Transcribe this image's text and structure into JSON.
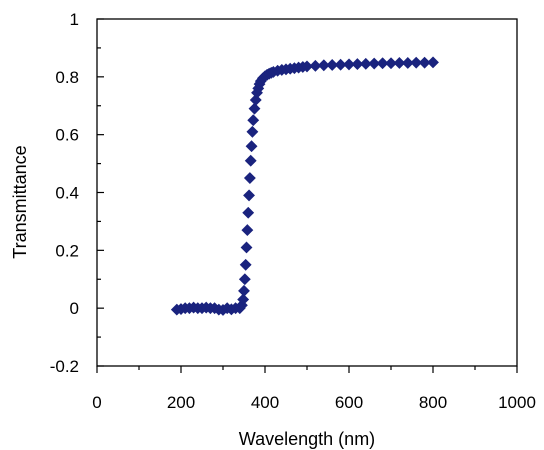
{
  "chart_data": {
    "type": "scatter",
    "title": "",
    "xlabel": "Wavelength (nm)",
    "ylabel": "Transmittance",
    "xlim": [
      0,
      1000
    ],
    "ylim": [
      -0.2,
      1
    ],
    "x_ticks": [
      0,
      200,
      400,
      600,
      800,
      1000
    ],
    "y_ticks": [
      -0.2,
      0,
      0.2,
      0.4,
      0.6,
      0.8,
      1
    ],
    "x_tick_labels": [
      "0",
      "200",
      "400",
      "600",
      "800",
      "1000"
    ],
    "y_tick_labels": [
      "-0.2",
      "0",
      "0.2",
      "0.4",
      "0.6",
      "0.8",
      "1"
    ],
    "grid": false,
    "legend": "none",
    "marker": "diamond",
    "marker_color": "#1a237e",
    "series": [
      {
        "x": [
          190,
          200,
          210,
          220,
          230,
          240,
          250,
          260,
          270,
          280,
          290,
          300,
          310,
          320,
          330,
          340,
          345,
          348,
          350,
          352,
          354,
          356,
          358,
          360,
          362,
          364,
          366,
          368,
          370,
          372,
          375,
          378,
          381,
          384,
          387,
          390,
          395,
          400,
          405,
          410,
          415,
          420,
          430,
          440,
          450,
          460,
          470,
          480,
          490,
          500,
          520,
          540,
          560,
          580,
          600,
          620,
          640,
          660,
          680,
          700,
          720,
          740,
          760,
          780,
          800
        ],
        "y": [
          -0.005,
          -0.003,
          0.0,
          0.0,
          0.002,
          0.0,
          0.0,
          0.002,
          0.0,
          0.0,
          -0.005,
          -0.006,
          0.0,
          -0.004,
          0.0,
          0.0,
          0.01,
          0.03,
          0.06,
          0.1,
          0.15,
          0.21,
          0.27,
          0.33,
          0.39,
          0.45,
          0.51,
          0.56,
          0.61,
          0.65,
          0.69,
          0.72,
          0.745,
          0.76,
          0.775,
          0.785,
          0.795,
          0.802,
          0.807,
          0.811,
          0.814,
          0.817,
          0.821,
          0.824,
          0.826,
          0.828,
          0.83,
          0.832,
          0.834,
          0.836,
          0.838,
          0.84,
          0.841,
          0.842,
          0.843,
          0.844,
          0.845,
          0.846,
          0.847,
          0.847,
          0.848,
          0.848,
          0.849,
          0.849,
          0.85
        ]
      }
    ]
  }
}
